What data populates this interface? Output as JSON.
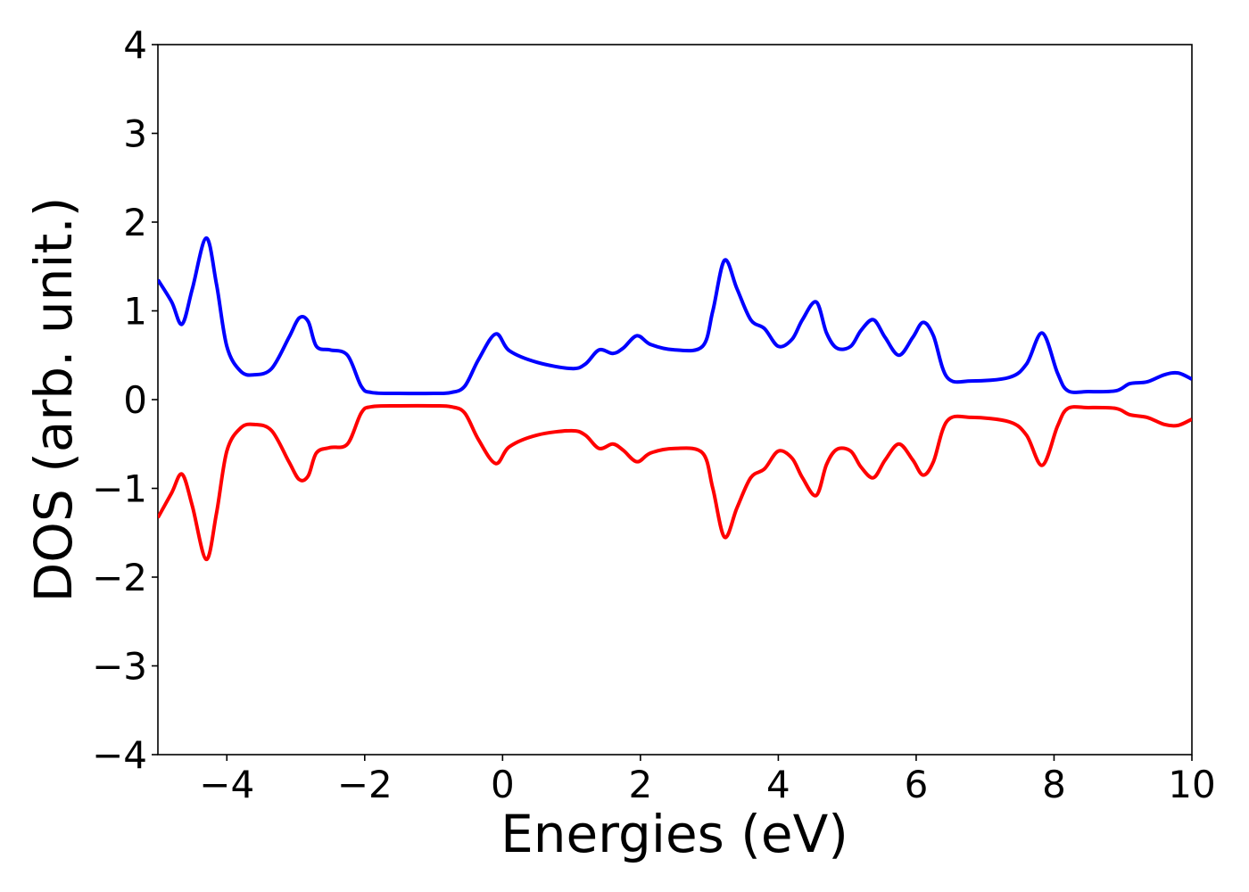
{
  "chart_data": {
    "type": "line",
    "title": "",
    "xlabel": "Energies (eV)",
    "ylabel": "DOS (arb. unit.)",
    "xlim": [
      -5,
      10
    ],
    "ylim": [
      -4,
      4
    ],
    "xticks": [
      -4,
      -2,
      0,
      2,
      4,
      6,
      8,
      10
    ],
    "xtick_labels": [
      "−4",
      "−2",
      "0",
      "2",
      "4",
      "6",
      "8",
      "10"
    ],
    "yticks": [
      -4,
      -3,
      -2,
      -1,
      0,
      1,
      2,
      3,
      4
    ],
    "ytick_labels": [
      "−4",
      "−3",
      "−2",
      "−1",
      "0",
      "1",
      "2",
      "3",
      "4"
    ],
    "grid": false,
    "legend": "none",
    "series": [
      {
        "color": "#0000ff",
        "x": [
          -5.0,
          -4.8,
          -4.65,
          -4.5,
          -4.3,
          -4.15,
          -4.0,
          -3.8,
          -3.6,
          -3.35,
          -3.1,
          -2.95,
          -2.82,
          -2.7,
          -2.5,
          -2.25,
          -2.05,
          -1.9,
          -1.5,
          -1.0,
          -0.75,
          -0.55,
          -0.35,
          -0.1,
          0.1,
          0.5,
          1.0,
          1.2,
          1.4,
          1.6,
          1.75,
          1.95,
          2.15,
          2.5,
          2.9,
          3.05,
          3.22,
          3.4,
          3.6,
          3.8,
          4.0,
          4.2,
          4.35,
          4.55,
          4.7,
          4.85,
          5.05,
          5.2,
          5.38,
          5.55,
          5.75,
          5.95,
          6.1,
          6.25,
          6.45,
          6.8,
          7.35,
          7.6,
          7.83,
          8.05,
          8.2,
          8.5,
          8.9,
          9.1,
          9.35,
          9.6,
          9.8,
          10.0
        ],
        "y": [
          1.35,
          1.1,
          0.85,
          1.25,
          1.82,
          1.3,
          0.6,
          0.32,
          0.28,
          0.35,
          0.7,
          0.92,
          0.88,
          0.6,
          0.56,
          0.5,
          0.15,
          0.08,
          0.07,
          0.07,
          0.08,
          0.15,
          0.45,
          0.74,
          0.55,
          0.42,
          0.35,
          0.4,
          0.56,
          0.52,
          0.58,
          0.72,
          0.62,
          0.56,
          0.6,
          1.0,
          1.57,
          1.25,
          0.9,
          0.8,
          0.6,
          0.68,
          0.9,
          1.1,
          0.75,
          0.58,
          0.6,
          0.78,
          0.9,
          0.7,
          0.5,
          0.7,
          0.87,
          0.72,
          0.25,
          0.21,
          0.25,
          0.4,
          0.75,
          0.3,
          0.1,
          0.09,
          0.1,
          0.18,
          0.2,
          0.28,
          0.3,
          0.23
        ]
      },
      {
        "color": "#ff0000",
        "x": [
          -5.0,
          -4.8,
          -4.65,
          -4.5,
          -4.3,
          -4.15,
          -4.0,
          -3.8,
          -3.6,
          -3.35,
          -3.1,
          -2.95,
          -2.82,
          -2.7,
          -2.5,
          -2.25,
          -2.05,
          -1.9,
          -1.5,
          -1.0,
          -0.75,
          -0.55,
          -0.35,
          -0.1,
          0.1,
          0.5,
          1.0,
          1.2,
          1.4,
          1.6,
          1.75,
          1.95,
          2.15,
          2.5,
          2.9,
          3.05,
          3.22,
          3.4,
          3.6,
          3.8,
          4.0,
          4.2,
          4.35,
          4.55,
          4.7,
          4.85,
          5.05,
          5.2,
          5.38,
          5.55,
          5.75,
          5.95,
          6.1,
          6.25,
          6.45,
          6.8,
          7.35,
          7.6,
          7.83,
          8.05,
          8.2,
          8.5,
          8.9,
          9.1,
          9.35,
          9.6,
          9.8,
          10.0
        ],
        "y": [
          -1.33,
          -1.05,
          -0.84,
          -1.2,
          -1.8,
          -1.28,
          -0.58,
          -0.32,
          -0.28,
          -0.35,
          -0.7,
          -0.9,
          -0.86,
          -0.6,
          -0.54,
          -0.5,
          -0.15,
          -0.08,
          -0.07,
          -0.07,
          -0.08,
          -0.15,
          -0.45,
          -0.72,
          -0.53,
          -0.4,
          -0.35,
          -0.4,
          -0.55,
          -0.5,
          -0.57,
          -0.7,
          -0.6,
          -0.55,
          -0.6,
          -1.0,
          -1.55,
          -1.22,
          -0.88,
          -0.78,
          -0.58,
          -0.66,
          -0.88,
          -1.08,
          -0.73,
          -0.56,
          -0.58,
          -0.76,
          -0.88,
          -0.68,
          -0.5,
          -0.68,
          -0.85,
          -0.7,
          -0.24,
          -0.2,
          -0.25,
          -0.4,
          -0.74,
          -0.3,
          -0.1,
          -0.09,
          -0.1,
          -0.17,
          -0.2,
          -0.28,
          -0.29,
          -0.22
        ]
      }
    ]
  }
}
